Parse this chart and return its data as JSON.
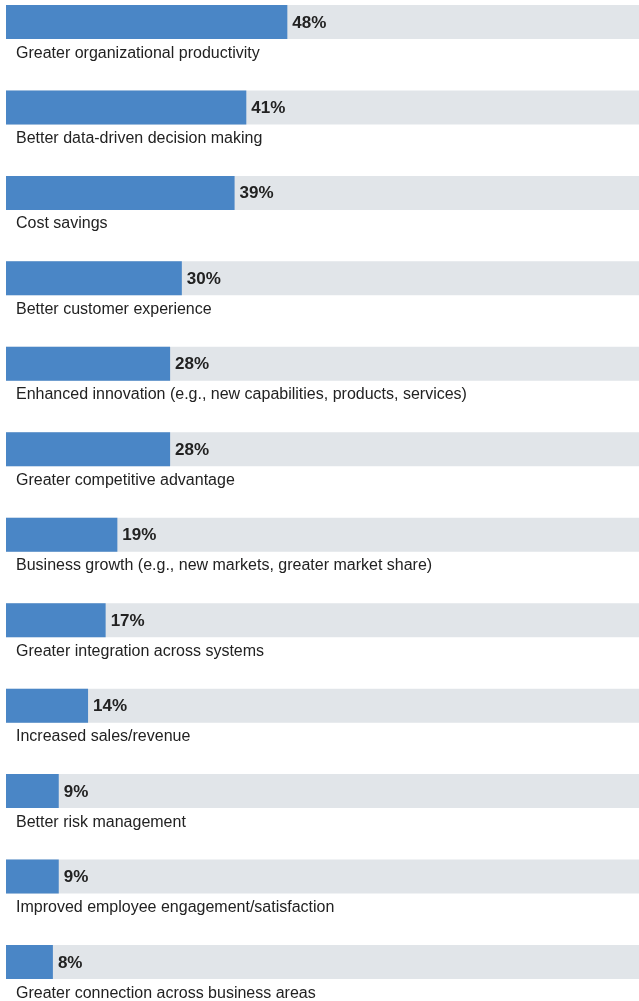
{
  "chart_data": {
    "type": "bar",
    "orientation": "horizontal",
    "categories": [
      "Greater organizational productivity",
      "Better data-driven decision making",
      "Cost savings",
      "Better customer experience",
      "Enhanced innovation (e.g., new capabilities, products, services)",
      "Greater competitive advantage",
      "Business growth (e.g., new markets, greater market share)",
      "Greater integration across systems",
      "Increased sales/revenue",
      "Better risk management",
      "Improved employee engagement/satisfaction",
      "Greater connection across business areas"
    ],
    "values": [
      48,
      41,
      39,
      30,
      28,
      28,
      19,
      17,
      14,
      9,
      9,
      8
    ],
    "value_labels": [
      "48%",
      "41%",
      "39%",
      "30%",
      "28%",
      "28%",
      "19%",
      "17%",
      "14%",
      "9%",
      "9%",
      "8%"
    ],
    "color": "#4a86c6",
    "xlim": [
      0,
      108
    ]
  }
}
